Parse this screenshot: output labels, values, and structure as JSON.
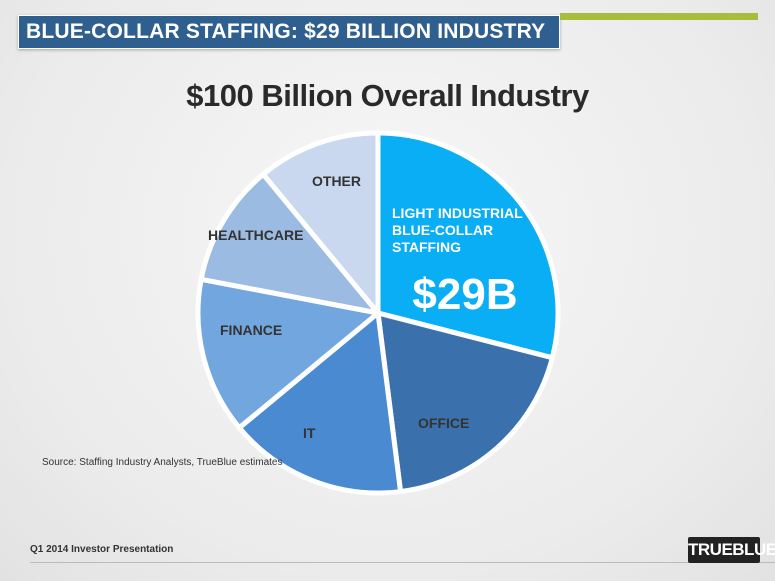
{
  "header": {
    "title": "BLUE-COLLAR STAFFING: $29 BILLION INDUSTRY"
  },
  "chart_data": {
    "type": "pie",
    "title": "$100 Billion Overall Industry",
    "categories": [
      "LIGHT INDUSTRIAL BLUE-COLLAR STAFFING",
      "OFFICE",
      "IT",
      "FINANCE",
      "HEALTHCARE",
      "OTHER"
    ],
    "values": [
      29,
      19,
      16,
      14,
      11,
      11
    ],
    "value_labels": [
      "$29B",
      null,
      null,
      null,
      null,
      null
    ],
    "colors": [
      "#0aaef5",
      "#3a71ad",
      "#4a8ad0",
      "#72a6de",
      "#9cbbe2",
      "#c9d8ef"
    ]
  },
  "source": "Source: Staffing Industry Analysts, TrueBlue estimates",
  "footer": "Q1 2014 Investor Presentation",
  "logo": "TRUEBLUE"
}
